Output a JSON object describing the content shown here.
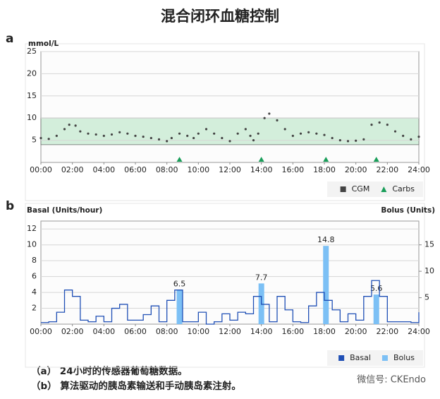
{
  "title": "混合闭环血糖控制",
  "chart_data": [
    {
      "type": "line",
      "label": "a",
      "axis_label": "mmol/L",
      "xlim": [
        0,
        24
      ],
      "xticks": [
        {
          "value": 0,
          "label": "00:00"
        },
        {
          "value": 2,
          "label": "02:00"
        },
        {
          "value": 4,
          "label": "04:00"
        },
        {
          "value": 6,
          "label": "06:00"
        },
        {
          "value": 8,
          "label": "08:00"
        },
        {
          "value": 10,
          "label": "10:00"
        },
        {
          "value": 12,
          "label": "12:00"
        },
        {
          "value": 14,
          "label": "14:00"
        },
        {
          "value": 16,
          "label": "16:00"
        },
        {
          "value": 18,
          "label": "18:00"
        },
        {
          "value": 20,
          "label": "20:00"
        },
        {
          "value": 22,
          "label": "22:00"
        },
        {
          "value": 24,
          "label": "24:00"
        }
      ],
      "ylim": [
        0,
        25
      ],
      "yticks": [
        5,
        10,
        15,
        20,
        25
      ],
      "grid": true,
      "target_range": [
        4,
        10
      ],
      "target_color": "#d3eedb",
      "series": [
        {
          "name": "CGM",
          "color": "#444444",
          "marker": "dot",
          "x": [
            0,
            0.5,
            1,
            1.5,
            1.8,
            2.2,
            2.5,
            3,
            3.5,
            4,
            4.5,
            5,
            5.5,
            6,
            6.5,
            7,
            7.5,
            8,
            8.3,
            8.8,
            9.3,
            9.7,
            10,
            10.5,
            11,
            11.5,
            12,
            12.5,
            13,
            13.3,
            13.5,
            13.8,
            14.2,
            14.5,
            15,
            15.5,
            16,
            16.5,
            17,
            17.5,
            18,
            18.5,
            19,
            19.5,
            20,
            20.5,
            21,
            21.5,
            22,
            22.5,
            23,
            23.5,
            24
          ],
          "values": [
            5.5,
            5.3,
            6.0,
            7.5,
            8.5,
            8.3,
            7.0,
            6.5,
            6.3,
            6.0,
            6.3,
            6.8,
            6.5,
            6.0,
            5.8,
            5.5,
            5.2,
            4.8,
            5.5,
            6.5,
            6.0,
            5.5,
            6.5,
            7.5,
            6.5,
            5.5,
            4.8,
            6.5,
            7.5,
            6.0,
            5.0,
            6.5,
            10,
            11,
            9.5,
            7.5,
            6.0,
            6.5,
            6.8,
            6.5,
            6.2,
            5.5,
            5.0,
            4.8,
            4.9,
            5.2,
            8.5,
            9.0,
            8.5,
            7.0,
            6.0,
            5.2,
            5.8
          ]
        },
        {
          "name": "Carbs",
          "color": "#1a9e5a",
          "marker": "triangle",
          "x": [
            8.8,
            14,
            18.1,
            21.3
          ]
        }
      ],
      "legend": "bottom-right"
    },
    {
      "type": "combo",
      "label": "b",
      "axis_label": "Basal (Units/hour)",
      "y2_axis_label": "Bolus (Units)",
      "xlim": [
        0,
        24
      ],
      "xticks": [
        {
          "value": 0,
          "label": "00:00"
        },
        {
          "value": 2,
          "label": "02:00"
        },
        {
          "value": 4,
          "label": "04:00"
        },
        {
          "value": 6,
          "label": "06:00"
        },
        {
          "value": 8,
          "label": "08:00"
        },
        {
          "value": 10,
          "label": "10:00"
        },
        {
          "value": 12,
          "label": "12:00"
        },
        {
          "value": 14,
          "label": "14:00"
        },
        {
          "value": 16,
          "label": "16:00"
        },
        {
          "value": 18,
          "label": "18:00"
        },
        {
          "value": 20,
          "label": "20:00"
        },
        {
          "value": 22,
          "label": "22:00"
        },
        {
          "value": 24,
          "label": "24:00"
        }
      ],
      "ylim": [
        0,
        13
      ],
      "yticks": [
        2,
        4,
        6,
        8,
        10,
        12
      ],
      "y2lim": [
        0,
        19.5
      ],
      "y2ticks": [
        5,
        10,
        15
      ],
      "grid": true,
      "series": [
        {
          "name": "Basal",
          "color": "#1f4fb5",
          "marker": "step",
          "x": [
            0,
            0.5,
            1,
            1.5,
            2,
            2.5,
            3,
            3.5,
            4,
            4.5,
            5,
            5.5,
            6,
            6.5,
            7,
            7.5,
            8,
            8.5,
            9,
            9.5,
            10,
            10.5,
            11,
            11.5,
            12,
            12.5,
            13,
            13.5,
            14,
            14.5,
            15,
            15.5,
            16,
            16.5,
            17,
            17.5,
            18,
            18.5,
            19,
            19.5,
            20,
            20.5,
            21,
            21.5,
            22,
            22.5,
            23,
            23.5,
            24
          ],
          "values": [
            0.2,
            0.3,
            1.5,
            4.3,
            3.5,
            0.5,
            0.3,
            1.0,
            0.3,
            2.0,
            2.5,
            0.5,
            0.5,
            1.2,
            2.3,
            0.3,
            3.0,
            4.3,
            0.3,
            0.3,
            1.5,
            0,
            0.3,
            1.3,
            0.5,
            1.5,
            1.3,
            3.5,
            2.5,
            0.3,
            3.5,
            1.8,
            0.3,
            0.2,
            2.3,
            4.0,
            3.0,
            1.8,
            0.3,
            1.3,
            0.5,
            3.5,
            5.5,
            3.5,
            0.3,
            0.3,
            0.3,
            0.2,
            1.5
          ]
        },
        {
          "name": "Bolus",
          "color": "#7cc0f5",
          "marker": "bar",
          "axis": "y2",
          "x": [
            8.8,
            14,
            18.1,
            21.3
          ],
          "values": [
            6.5,
            7.7,
            14.8,
            5.6
          ]
        }
      ],
      "legend": "bottom-right"
    }
  ],
  "captions": [
    "（a） 24小时的传感器葡萄糖数据。",
    "（b） 算法驱动的胰岛素输送和手动胰岛素注射。"
  ],
  "watermark": "微信号: CKEndo"
}
